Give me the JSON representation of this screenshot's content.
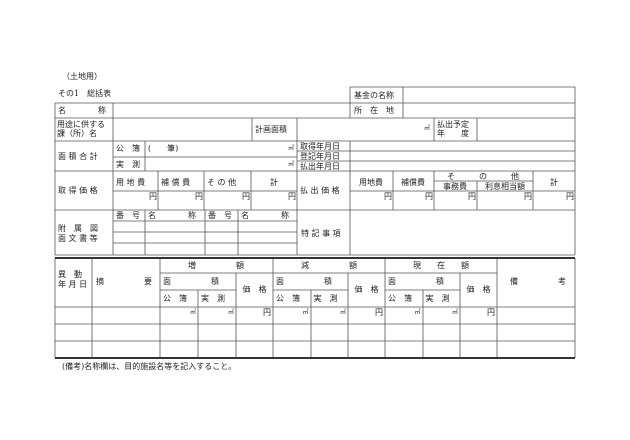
{
  "header": {
    "category": "（土地用）",
    "title": "その1　総括表"
  },
  "top": {
    "fund_name": "基金の名称",
    "name": "名　　　　称",
    "location": "所　在　地",
    "purpose_l1": "用途に供する",
    "purpose_l2": "課（所）名",
    "planned_area": "計画面積",
    "sqm": "㎡",
    "payout_year_l1": "払出予定",
    "payout_year_l2": "年　　度",
    "area_total": "面 積 合 計",
    "registry": "公　簿",
    "parcels": "(　　筆)",
    "survey": "実　測",
    "acq_date": "取得年月日",
    "reg_date": "登記年月日",
    "payout_date": "払出年月日",
    "acq_price": "取 得 価 格",
    "land": "用 地 費",
    "comp": "補 償 費",
    "other": "そ の 他",
    "total": "計",
    "yen": "円",
    "payout_price": "払 出 価 格",
    "p_land": "用地費",
    "p_comp": "補償費",
    "p_other": "そ　　　の　　　他",
    "p_office": "事務費",
    "p_interest": "利息相当額",
    "p_total": "計",
    "attach_l1": "附　属　図",
    "attach_l2": "面 文 書 等",
    "number": "番　号",
    "aname": "名　　　　称",
    "special": "特 記 事 項"
  },
  "lower": {
    "date_l1": "異　動",
    "date_l2": "年 月 日",
    "summary": "摘　　　　　要",
    "increase": "増　　　　　額",
    "decrease": "減　　　　　額",
    "current": "現　　在　　額",
    "area": "面　　　　　積",
    "price": "価　格",
    "registry": "公　簿",
    "survey": "実　測",
    "remarks": "備　　　　　考",
    "sqm": "㎡",
    "yen": "円"
  },
  "note": "(備考)名称欄は、目的施設名等を記入すること。"
}
